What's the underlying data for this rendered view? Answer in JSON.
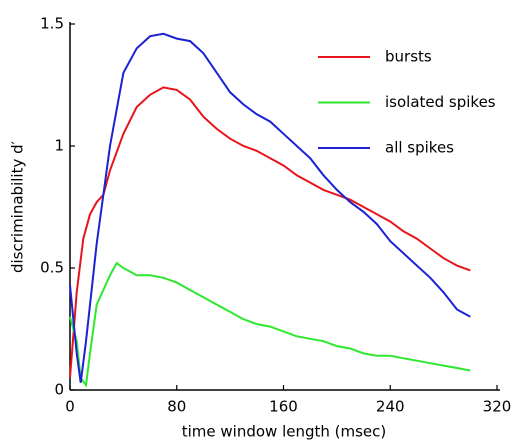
{
  "chart_data": {
    "type": "line",
    "xlabel": "time window length (msec)",
    "ylabel": "discriminability d′",
    "xlim": [
      0,
      320
    ],
    "ylim": [
      0,
      1.5
    ],
    "xticks": [
      0,
      80,
      160,
      240,
      320
    ],
    "yticks": [
      0,
      0.5,
      1,
      1.5
    ],
    "legend": "upper right",
    "series": [
      {
        "name": "bursts",
        "color": "#e8141b",
        "x": [
          0,
          5,
          10,
          15,
          20,
          25,
          30,
          40,
          50,
          60,
          70,
          80,
          90,
          100,
          110,
          120,
          130,
          140,
          150,
          160,
          170,
          180,
          190,
          200,
          210,
          220,
          230,
          240,
          250,
          260,
          270,
          280,
          290,
          300
        ],
        "values": [
          0.05,
          0.4,
          0.62,
          0.72,
          0.77,
          0.8,
          0.9,
          1.05,
          1.16,
          1.21,
          1.24,
          1.23,
          1.19,
          1.12,
          1.07,
          1.03,
          1.0,
          0.98,
          0.95,
          0.92,
          0.88,
          0.85,
          0.82,
          0.8,
          0.78,
          0.75,
          0.72,
          0.69,
          0.65,
          0.62,
          0.58,
          0.54,
          0.51,
          0.49
        ]
      },
      {
        "name": "isolated spikes",
        "color": "#2ee82e",
        "x": [
          0,
          5,
          8,
          12,
          15,
          20,
          30,
          35,
          40,
          50,
          60,
          70,
          80,
          90,
          100,
          110,
          120,
          130,
          140,
          150,
          160,
          170,
          180,
          190,
          200,
          210,
          220,
          230,
          240,
          250,
          260,
          270,
          280,
          290,
          300
        ],
        "values": [
          0.3,
          0.2,
          0.05,
          0.02,
          0.15,
          0.35,
          0.47,
          0.52,
          0.5,
          0.47,
          0.47,
          0.46,
          0.44,
          0.41,
          0.38,
          0.35,
          0.32,
          0.29,
          0.27,
          0.26,
          0.24,
          0.22,
          0.21,
          0.2,
          0.18,
          0.17,
          0.15,
          0.14,
          0.14,
          0.13,
          0.12,
          0.11,
          0.1,
          0.09,
          0.08
        ]
      },
      {
        "name": "all spikes",
        "color": "#1b22d6",
        "x": [
          0,
          5,
          8,
          12,
          20,
          30,
          40,
          50,
          60,
          70,
          80,
          90,
          100,
          110,
          120,
          130,
          140,
          150,
          160,
          170,
          180,
          190,
          200,
          210,
          220,
          230,
          240,
          250,
          260,
          270,
          280,
          290,
          300
        ],
        "values": [
          0.43,
          0.15,
          0.03,
          0.2,
          0.6,
          1.0,
          1.3,
          1.4,
          1.45,
          1.46,
          1.44,
          1.43,
          1.38,
          1.3,
          1.22,
          1.17,
          1.13,
          1.1,
          1.05,
          1.0,
          0.95,
          0.88,
          0.82,
          0.77,
          0.73,
          0.68,
          0.61,
          0.56,
          0.51,
          0.46,
          0.4,
          0.33,
          0.3
        ]
      }
    ]
  }
}
